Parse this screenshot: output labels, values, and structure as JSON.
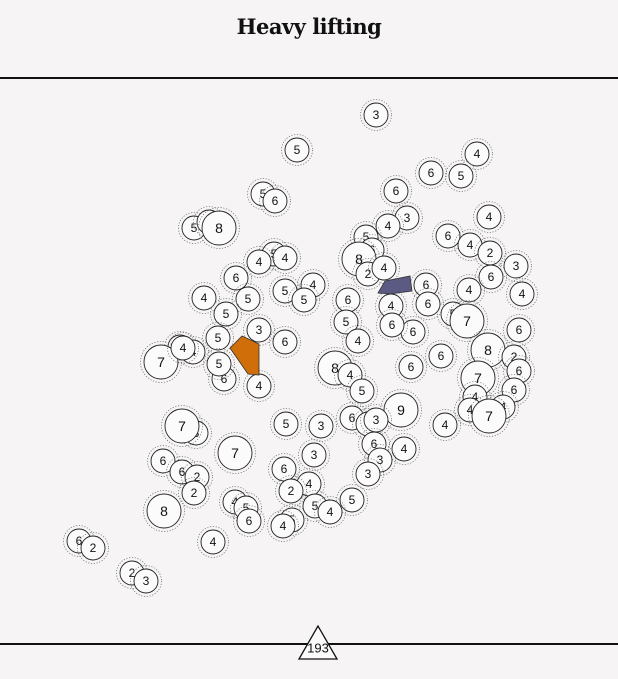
{
  "title": "Heavy lifting",
  "move_counter": "193",
  "colors": {
    "orange": "#d06f09",
    "navy": "#5a5a82",
    "background": "#f6f4f5"
  },
  "board_circle_numbers": [
    "3",
    "5",
    "4",
    "6",
    "5",
    "6",
    "3",
    "4",
    "5",
    "6",
    "4",
    "6",
    "5",
    "2",
    "8",
    "4",
    "2",
    "5",
    "5",
    "6",
    "3",
    "4",
    "6",
    "6",
    "4",
    "4",
    "8",
    "2",
    "4",
    "6",
    "4",
    "5",
    "5",
    "5",
    "4",
    "4",
    "4",
    "6",
    "6",
    "5",
    "7",
    "5",
    "6",
    "5",
    "5",
    "3",
    "6",
    "4",
    "6",
    "6",
    "6",
    "6",
    "4",
    "8",
    "7",
    "4",
    "8",
    "6",
    "2",
    "7",
    "4",
    "6",
    "6",
    "5",
    "4",
    "4",
    "5",
    "6",
    "4",
    "4",
    "7",
    "9",
    "6",
    "5",
    "3",
    "6",
    "3",
    "4",
    "3",
    "7",
    "6",
    "4",
    "7",
    "6",
    "6",
    "3",
    "3",
    "3",
    "6",
    "2",
    "2",
    "4",
    "5",
    "4",
    "2",
    "5",
    "5",
    "8",
    "6",
    "4",
    "5",
    "4",
    "4",
    "6",
    "2",
    "2",
    "3",
    "3",
    "3",
    "2"
  ]
}
